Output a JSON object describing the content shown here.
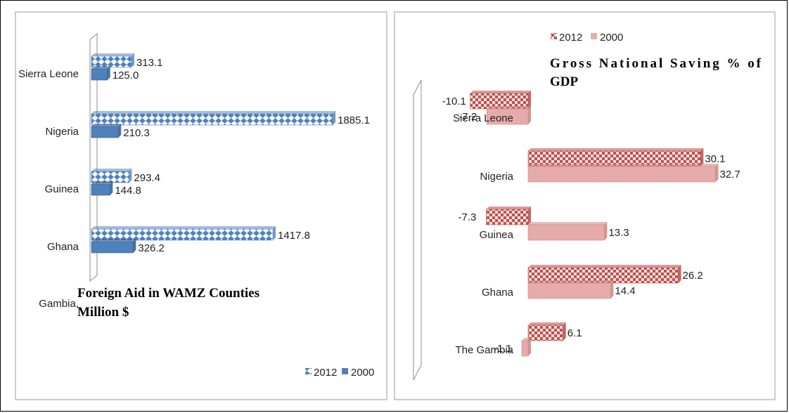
{
  "chart_data": [
    {
      "type": "bar",
      "orientation": "horizontal",
      "categories": [
        "Sierra Leone",
        "Nigeria",
        "Guinea",
        "Ghana",
        "Gambia,"
      ],
      "series": [
        {
          "name": "2012",
          "values": [
            313.1,
            1885.1,
            293.4,
            1417.8,
            null
          ],
          "labels": [
            "313.1",
            "1885.1",
            "293.4",
            "1417.8",
            ""
          ]
        },
        {
          "name": "2000",
          "values": [
            125.0,
            210.3,
            144.8,
            326.2,
            null
          ],
          "labels": [
            "125.0",
            "210.3",
            "144.8",
            "326.2",
            ""
          ]
        }
      ],
      "title": "Foreign Aid in WAMZ Counties Million $",
      "title_lines": [
        "Foreign Aid in WAMZ Counties",
        "Million $"
      ],
      "legend": "bottom-right",
      "colors": {
        "2012": "#4f81bd",
        "2000": "#4f81bd"
      },
      "xlim": [
        0,
        2000
      ],
      "grid": false
    },
    {
      "type": "bar",
      "orientation": "horizontal",
      "categories": [
        "Sierra Leone",
        "Nigeria",
        "Guinea",
        "Ghana",
        "The Gambia"
      ],
      "series": [
        {
          "name": "2012",
          "values": [
            -10.1,
            30.1,
            -7.3,
            26.2,
            6.1
          ],
          "labels": [
            "-10.1",
            "30.1",
            "-7.3",
            "26.2",
            "6.1"
          ]
        },
        {
          "name": "2000",
          "values": [
            -7.2,
            32.7,
            13.3,
            14.4,
            -1.1
          ],
          "labels": [
            "-7.2",
            "32.7",
            "13.3",
            "14.4",
            "-1.1"
          ]
        }
      ],
      "title": "Gross National Saving % of GDP",
      "title_lines": [
        "Gross  National  Saving  %  of",
        "GDP"
      ],
      "legend": "top-left",
      "colors": {
        "2012": "#c0504d",
        "2000": "#e6a7a5"
      },
      "xlim": [
        -12,
        35
      ],
      "grid": false
    }
  ]
}
